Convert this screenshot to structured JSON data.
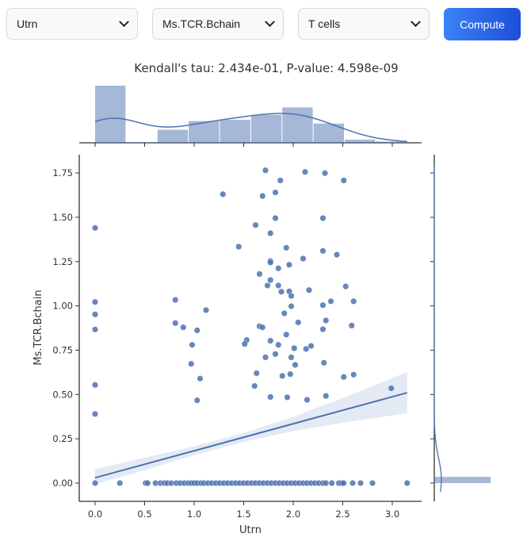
{
  "controls": {
    "x_select": "Utrn",
    "y_select": "Ms.TCR.Bchain",
    "cell_select": "T cells",
    "compute_label": "Compute"
  },
  "chart_data": {
    "type": "scatter",
    "title": "Kendall's tau: 2.434e-01, P-value: 4.598e-09",
    "xlabel": "Utrn",
    "ylabel": "Ms.TCR.Bchain",
    "xlim": [
      -0.15,
      3.3
    ],
    "ylim": [
      -0.1,
      1.85
    ],
    "xticks": [
      "0.0",
      "0.5",
      "1.0",
      "1.5",
      "2.0",
      "2.5",
      "3.0"
    ],
    "yticks": [
      "0.00",
      "0.25",
      "0.50",
      "0.75",
      "1.00",
      "1.25",
      "1.50",
      "1.75"
    ],
    "color": "#4c72b0",
    "points": [
      [
        1.72,
        1.765
      ],
      [
        2.12,
        1.756
      ],
      [
        2.32,
        1.749
      ],
      [
        1.87,
        1.708
      ],
      [
        2.51,
        1.708
      ],
      [
        1.29,
        1.63
      ],
      [
        1.69,
        1.62
      ],
      [
        1.82,
        1.64
      ],
      [
        1.82,
        1.495
      ],
      [
        2.3,
        1.495
      ],
      [
        0,
        1.44
      ],
      [
        1.62,
        1.456
      ],
      [
        1.77,
        1.41
      ],
      [
        1.45,
        1.334
      ],
      [
        1.93,
        1.328
      ],
      [
        2.3,
        1.31
      ],
      [
        2.44,
        1.289
      ],
      [
        2.1,
        1.267
      ],
      [
        1.77,
        1.253
      ],
      [
        1.77,
        1.245
      ],
      [
        1.96,
        1.232
      ],
      [
        1.85,
        1.212
      ],
      [
        1.66,
        1.18
      ],
      [
        1.77,
        1.146
      ],
      [
        1.74,
        1.115
      ],
      [
        1.85,
        1.115
      ],
      [
        1.88,
        1.08
      ],
      [
        1.96,
        1.082
      ],
      [
        2.16,
        1.089
      ],
      [
        2.53,
        1.11
      ],
      [
        1.98,
        1.056
      ],
      [
        0,
        1.022
      ],
      [
        0.81,
        1.034
      ],
      [
        2.38,
        1.026
      ],
      [
        2.61,
        1.026
      ],
      [
        1.98,
        0.998
      ],
      [
        2.3,
        1.004
      ],
      [
        0,
        0.952
      ],
      [
        1.12,
        0.976
      ],
      [
        1.91,
        0.958
      ],
      [
        0,
        0.867
      ],
      [
        0.81,
        0.903
      ],
      [
        0.89,
        0.879
      ],
      [
        1.03,
        0.862
      ],
      [
        2.05,
        0.907
      ],
      [
        2.33,
        0.918
      ],
      [
        2.59,
        0.889
      ],
      [
        1.66,
        0.885
      ],
      [
        1.69,
        0.879
      ],
      [
        2.3,
        0.868
      ],
      [
        1.93,
        0.838
      ],
      [
        0.98,
        0.78
      ],
      [
        1.53,
        0.807
      ],
      [
        1.51,
        0.785
      ],
      [
        1.77,
        0.803
      ],
      [
        1.85,
        0.78
      ],
      [
        2.01,
        0.761
      ],
      [
        2.18,
        0.774
      ],
      [
        2.13,
        0.757
      ],
      [
        0.97,
        0.673
      ],
      [
        1.72,
        0.71
      ],
      [
        1.82,
        0.728
      ],
      [
        1.98,
        0.71
      ],
      [
        2.02,
        0.667
      ],
      [
        2.31,
        0.679
      ],
      [
        1.06,
        0.59
      ],
      [
        1.63,
        0.62
      ],
      [
        1.89,
        0.605
      ],
      [
        1.97,
        0.615
      ],
      [
        2.51,
        0.599
      ],
      [
        2.61,
        0.612
      ],
      [
        0,
        0.554
      ],
      [
        1.61,
        0.548
      ],
      [
        1.77,
        0.486
      ],
      [
        1.94,
        0.484
      ],
      [
        2.14,
        0.47
      ],
      [
        2.33,
        0.492
      ],
      [
        1.03,
        0.467
      ],
      [
        2.99,
        0.535
      ],
      [
        0,
        0.39
      ],
      [
        0,
        0
      ],
      [
        0.25,
        0
      ],
      [
        0.51,
        0
      ],
      [
        0.53,
        0
      ],
      [
        0.61,
        0
      ],
      [
        0.66,
        0
      ],
      [
        0.7,
        0
      ],
      [
        0.73,
        0
      ],
      [
        0.77,
        0
      ],
      [
        0.82,
        0
      ],
      [
        0.86,
        0
      ],
      [
        0.9,
        0
      ],
      [
        0.94,
        0
      ],
      [
        0.97,
        0
      ],
      [
        1.0,
        0
      ],
      [
        1.03,
        0
      ],
      [
        1.07,
        0
      ],
      [
        1.1,
        0
      ],
      [
        1.14,
        0
      ],
      [
        1.18,
        0
      ],
      [
        1.22,
        0
      ],
      [
        1.26,
        0
      ],
      [
        1.3,
        0
      ],
      [
        1.34,
        0
      ],
      [
        1.38,
        0
      ],
      [
        1.42,
        0
      ],
      [
        1.46,
        0
      ],
      [
        1.5,
        0
      ],
      [
        1.54,
        0
      ],
      [
        1.58,
        0
      ],
      [
        1.62,
        0
      ],
      [
        1.66,
        0
      ],
      [
        1.7,
        0
      ],
      [
        1.74,
        0
      ],
      [
        1.78,
        0
      ],
      [
        1.82,
        0
      ],
      [
        1.86,
        0
      ],
      [
        1.9,
        0
      ],
      [
        1.94,
        0
      ],
      [
        1.98,
        0
      ],
      [
        2.02,
        0
      ],
      [
        2.06,
        0
      ],
      [
        2.1,
        0
      ],
      [
        2.14,
        0
      ],
      [
        2.18,
        0
      ],
      [
        2.22,
        0
      ],
      [
        2.26,
        0
      ],
      [
        2.3,
        0
      ],
      [
        2.33,
        0
      ],
      [
        2.39,
        0
      ],
      [
        2.46,
        0
      ],
      [
        2.49,
        0
      ],
      [
        2.51,
        0
      ],
      [
        2.6,
        0
      ],
      [
        2.68,
        0
      ],
      [
        2.8,
        0
      ],
      [
        3.15,
        0
      ]
    ],
    "regression": {
      "x": [
        0,
        3.15
      ],
      "y": [
        0.03,
        0.51
      ]
    },
    "confidence_band": {
      "x": [
        0,
        0.5,
        1.0,
        1.5,
        2.0,
        2.5,
        3.15
      ],
      "lower": [
        -0.007,
        0.073,
        0.157,
        0.233,
        0.294,
        0.34,
        0.394
      ],
      "upper": [
        0.079,
        0.143,
        0.207,
        0.283,
        0.374,
        0.48,
        0.627
      ]
    },
    "x_marginal_hist": {
      "bin_edges": [
        0,
        0.315,
        0.63,
        0.945,
        1.26,
        1.575,
        1.89,
        2.205,
        2.52,
        2.835,
        3.15
      ],
      "counts": [
        92,
        1,
        21,
        35,
        37,
        45,
        57,
        31,
        5,
        2
      ]
    },
    "y_marginal_hist": {
      "bin_edges": [
        0,
        0.035
      ],
      "counts": [
        230
      ]
    }
  }
}
